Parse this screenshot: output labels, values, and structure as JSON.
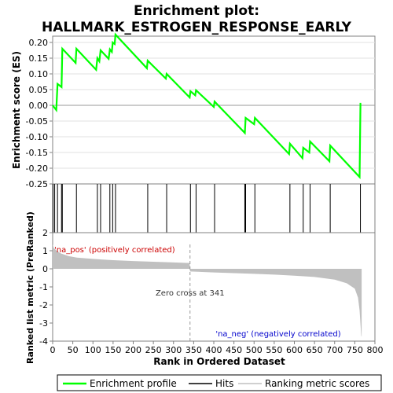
{
  "chart_data": {
    "type": "line",
    "title_lines": [
      "Enrichment plot:",
      "HALLMARK_ESTROGEN_RESPONSE_EARLY"
    ],
    "es_panel": {
      "ylabel": "Enrichment score (ES)",
      "ylim": [
        -0.25,
        0.22
      ],
      "yticks": [
        0.2,
        0.15,
        0.1,
        0.05,
        0.0,
        -0.05,
        -0.1,
        -0.15,
        -0.2,
        -0.25
      ],
      "ytick_labels": [
        "0.20",
        "0.15",
        "0.10",
        "0.05",
        "0.00",
        "-0.05",
        "-0.10",
        "-0.15",
        "-0.20",
        "-0.25"
      ],
      "line_color": "#00ff00",
      "points": [
        [
          0,
          0.0
        ],
        [
          9,
          -0.015
        ],
        [
          12,
          0.068
        ],
        [
          22,
          0.058
        ],
        [
          24,
          0.18
        ],
        [
          57,
          0.135
        ],
        [
          59,
          0.18
        ],
        [
          108,
          0.113
        ],
        [
          111,
          0.15
        ],
        [
          116,
          0.14
        ],
        [
          119,
          0.175
        ],
        [
          139,
          0.148
        ],
        [
          142,
          0.178
        ],
        [
          147,
          0.17
        ],
        [
          149,
          0.2
        ],
        [
          154,
          0.195
        ],
        [
          156,
          0.225
        ],
        [
          234,
          0.118
        ],
        [
          236,
          0.142
        ],
        [
          281,
          0.085
        ],
        [
          283,
          0.1
        ],
        [
          340,
          0.025
        ],
        [
          342,
          0.045
        ],
        [
          354,
          0.032
        ],
        [
          356,
          0.048
        ],
        [
          400,
          -0.005
        ],
        [
          402,
          0.012
        ],
        [
          477,
          -0.088
        ],
        [
          479,
          -0.04
        ],
        [
          500,
          -0.06
        ],
        [
          502,
          -0.04
        ],
        [
          587,
          -0.155
        ],
        [
          589,
          -0.122
        ],
        [
          620,
          -0.168
        ],
        [
          622,
          -0.135
        ],
        [
          637,
          -0.15
        ],
        [
          639,
          -0.115
        ],
        [
          687,
          -0.178
        ],
        [
          689,
          -0.128
        ],
        [
          762,
          -0.228
        ],
        [
          764,
          0.005
        ],
        [
          766,
          0.005
        ]
      ]
    },
    "hits": [
      1,
      5,
      12,
      22,
      24,
      59,
      111,
      119,
      142,
      149,
      156,
      236,
      283,
      342,
      356,
      402,
      477,
      479,
      502,
      589,
      622,
      639,
      689,
      764
    ],
    "metric_panel": {
      "ylabel": "Ranked list metric (PreRanked)",
      "xlabel": "Rank in Ordered Dataset",
      "ylim": [
        -4,
        2
      ],
      "yticks": [
        2,
        1,
        0,
        -1,
        -2,
        -3,
        -4
      ],
      "xlim": [
        0,
        800
      ],
      "xticks": [
        0,
        50,
        100,
        150,
        200,
        250,
        300,
        350,
        400,
        450,
        500,
        550,
        600,
        650,
        700,
        750,
        800
      ],
      "profile": [
        [
          0,
          1.35
        ],
        [
          3,
          1.15
        ],
        [
          10,
          1.0
        ],
        [
          20,
          0.85
        ],
        [
          40,
          0.7
        ],
        [
          60,
          0.62
        ],
        [
          100,
          0.55
        ],
        [
          150,
          0.48
        ],
        [
          200,
          0.43
        ],
        [
          250,
          0.39
        ],
        [
          300,
          0.35
        ],
        [
          340,
          0.32
        ],
        [
          341,
          -0.15
        ],
        [
          400,
          -0.2
        ],
        [
          450,
          -0.24
        ],
        [
          500,
          -0.28
        ],
        [
          550,
          -0.32
        ],
        [
          600,
          -0.38
        ],
        [
          650,
          -0.45
        ],
        [
          700,
          -0.6
        ],
        [
          730,
          -0.8
        ],
        [
          750,
          -1.1
        ],
        [
          758,
          -1.6
        ],
        [
          762,
          -2.3
        ],
        [
          766,
          -3.7
        ],
        [
          767,
          -3.75
        ]
      ],
      "pos_label": "'na_pos' (positively correlated)",
      "neg_label": "'na_neg' (negatively correlated)",
      "zero_cross_label": "Zero cross at 341",
      "zero_cross": 341
    },
    "legend": [
      {
        "label": "Enrichment profile",
        "color": "#00ff00"
      },
      {
        "label": "Hits",
        "color": "#000000"
      },
      {
        "label": "Ranking metric scores",
        "color": "#c0c0c0"
      }
    ]
  }
}
